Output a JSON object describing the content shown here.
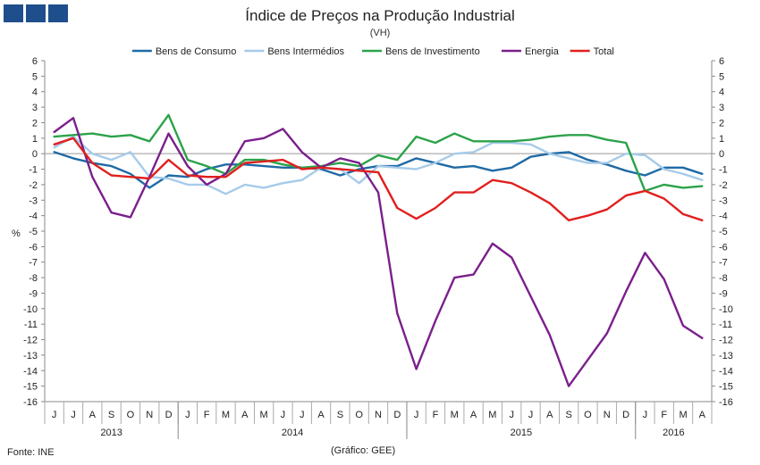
{
  "header": {
    "logo_name": "ine-logo"
  },
  "chart_data": {
    "type": "line",
    "title": "Índice de Preços na Produção Industrial",
    "subtitle": "(VH)",
    "ylabel": "%",
    "ylim": [
      -16,
      6
    ],
    "yticks": [
      6,
      5,
      4,
      3,
      2,
      1,
      0,
      -1,
      -2,
      -3,
      -4,
      -5,
      -6,
      -7,
      -8,
      -9,
      -10,
      -11,
      -12,
      -13,
      -14,
      -15,
      -16
    ],
    "months": [
      "J",
      "J",
      "A",
      "S",
      "O",
      "N",
      "D",
      "J",
      "F",
      "M",
      "A",
      "M",
      "J",
      "J",
      "A",
      "S",
      "O",
      "N",
      "D",
      "J",
      "F",
      "M",
      "A",
      "M",
      "J",
      "J",
      "A",
      "S",
      "O",
      "N",
      "D",
      "J",
      "F",
      "M",
      "A"
    ],
    "years": [
      {
        "label": "2013",
        "start": 0,
        "end": 7
      },
      {
        "label": "2014",
        "start": 7,
        "end": 19
      },
      {
        "label": "2015",
        "start": 19,
        "end": 31
      },
      {
        "label": "2016",
        "start": 31,
        "end": 35
      }
    ],
    "series": [
      {
        "name": "Bens de Consumo",
        "color": "#1f6aa5",
        "values": [
          0.1,
          -0.3,
          -0.6,
          -0.8,
          -1.3,
          -2.2,
          -1.4,
          -1.5,
          -1.0,
          -0.7,
          -0.7,
          -0.8,
          -0.9,
          -0.9,
          -1.0,
          -1.4,
          -1.0,
          -0.8,
          -0.8,
          -0.3,
          -0.6,
          -0.9,
          -0.8,
          -1.1,
          -0.9,
          -0.2,
          0.0,
          0.1,
          -0.4,
          -0.7,
          -1.1,
          -1.4,
          -0.9,
          -0.9,
          -1.3
        ]
      },
      {
        "name": "Bens Intermédios",
        "color": "#a6cbea",
        "values": [
          0.4,
          1.1,
          0.0,
          -0.4,
          0.1,
          -1.5,
          -1.6,
          -2.0,
          -2.0,
          -2.6,
          -2.0,
          -2.2,
          -1.9,
          -1.7,
          -0.9,
          -1.0,
          -1.9,
          -0.8,
          -0.9,
          -1.0,
          -0.6,
          0.0,
          0.1,
          0.7,
          0.7,
          0.6,
          0.0,
          -0.3,
          -0.6,
          -0.6,
          0.0,
          -0.1,
          -1.0,
          -1.3,
          -1.7
        ]
      },
      {
        "name": "Bens de Investimento",
        "color": "#2ca24a",
        "values": [
          1.1,
          1.2,
          1.3,
          1.1,
          1.2,
          0.8,
          2.5,
          -0.4,
          -0.8,
          -1.3,
          -0.4,
          -0.4,
          -0.7,
          -0.9,
          -0.8,
          -0.6,
          -0.8,
          -0.1,
          -0.4,
          1.1,
          0.7,
          1.3,
          0.8,
          0.8,
          0.8,
          0.9,
          1.1,
          1.2,
          1.2,
          0.9,
          0.7,
          -2.4,
          -2.0,
          -2.2,
          -2.1
        ]
      },
      {
        "name": "Energia",
        "color": "#7b1f8c",
        "values": [
          1.4,
          2.3,
          -1.5,
          -3.8,
          -4.1,
          -1.5,
          1.3,
          -0.8,
          -2.0,
          -1.3,
          0.8,
          1.0,
          1.6,
          0.1,
          -0.9,
          -0.3,
          -0.6,
          -2.5,
          -10.3,
          -13.9,
          -10.8,
          -8.0,
          -7.8,
          -5.8,
          -6.7,
          -9.2,
          -11.7,
          -15.0,
          -13.3,
          -11.6,
          -8.9,
          -6.4,
          -8.1,
          -11.1,
          -11.9
        ]
      },
      {
        "name": "Total",
        "color": "#e0201e",
        "values": [
          0.6,
          1.0,
          -0.6,
          -1.4,
          -1.5,
          -1.6,
          -0.4,
          -1.4,
          -1.5,
          -1.5,
          -0.6,
          -0.5,
          -0.4,
          -1.0,
          -0.9,
          -1.0,
          -1.1,
          -1.2,
          -3.5,
          -4.2,
          -3.5,
          -2.5,
          -2.5,
          -1.7,
          -1.9,
          -2.5,
          -3.2,
          -4.3,
          -4.0,
          -3.6,
          -2.7,
          -2.4,
          -2.9,
          -3.9,
          -4.3
        ]
      }
    ]
  },
  "footer": {
    "source": "Fonte: INE",
    "credit": "(Gráfico: GEE)"
  }
}
